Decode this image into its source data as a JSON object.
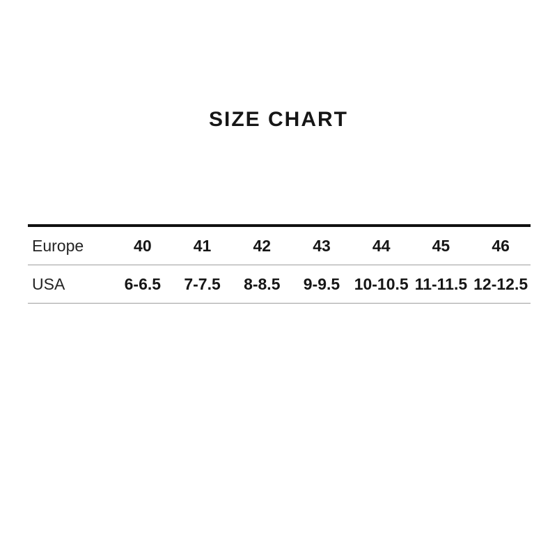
{
  "page": {
    "title": "SIZE CHART"
  },
  "colors": {
    "background": "#ffffff",
    "text": "#1d1d1d",
    "thick_rule": "#111111",
    "thin_rule": "#9e9e9e"
  },
  "chart_data": {
    "type": "table",
    "title": "SIZE CHART",
    "rows": [
      {
        "label": "Europe",
        "values": [
          "40",
          "41",
          "42",
          "43",
          "44",
          "45",
          "46"
        ]
      },
      {
        "label": "USA",
        "values": [
          "6-6.5",
          "7-7.5",
          "8-8.5",
          "9-9.5",
          "10-10.5",
          "11-11.5",
          "12-12.5"
        ]
      }
    ],
    "layout": {
      "title_position": "top-center",
      "table_rules": [
        "thick-top",
        "thin-row-separators",
        "thin-bottom"
      ]
    }
  }
}
